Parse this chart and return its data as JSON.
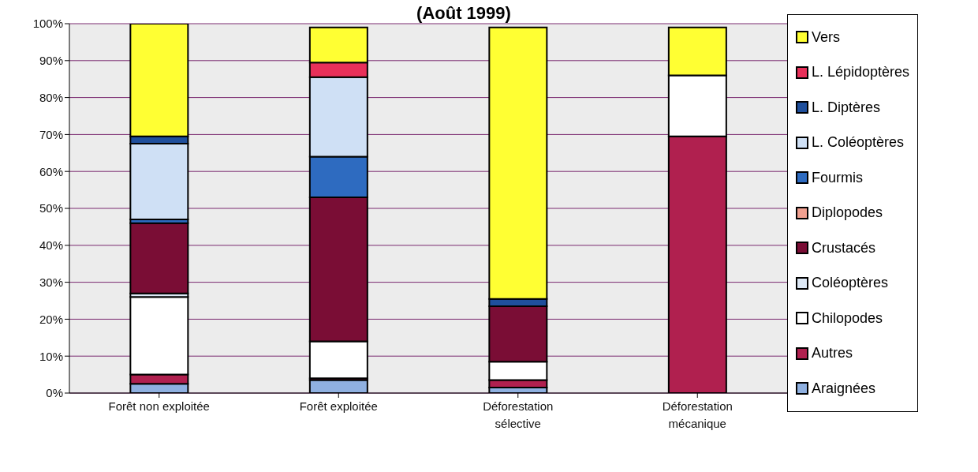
{
  "chart_data": {
    "type": "bar",
    "title": "(Août 1999)",
    "stacked": true,
    "categories": [
      "Forêt non exploitée",
      "Forêt exploitée",
      "Déforestation sélective",
      "Déforestation mécanique"
    ],
    "series": [
      {
        "name": "Araignées",
        "color": "#8fb0e0",
        "values": [
          2.5,
          3.5,
          1.5,
          0
        ]
      },
      {
        "name": "Autres",
        "color": "#b0204f",
        "values": [
          2.5,
          0.5,
          2,
          69.5
        ]
      },
      {
        "name": "Chilopodes",
        "color": "#ffffff",
        "values": [
          21,
          10,
          5,
          16.5
        ]
      },
      {
        "name": "Coléoptères",
        "color": "#dde8f5",
        "values": [
          1,
          0,
          0,
          0
        ]
      },
      {
        "name": "Crustacés",
        "color": "#7a0d35",
        "values": [
          19,
          39,
          15,
          0
        ]
      },
      {
        "name": "Diplopodes",
        "color": "#f0a090",
        "values": [
          0,
          0,
          0,
          0
        ]
      },
      {
        "name": "Fourmis",
        "color": "#2e6bc0",
        "values": [
          1,
          11,
          0,
          0
        ]
      },
      {
        "name": "L. Coléoptères",
        "color": "#cfe0f5",
        "values": [
          20.5,
          21.5,
          0,
          0
        ]
      },
      {
        "name": "L. Diptères",
        "color": "#1f4f9c",
        "values": [
          2,
          0,
          2,
          0
        ]
      },
      {
        "name": "L. Lépidoptères",
        "color": "#e8305a",
        "values": [
          0,
          4,
          0,
          0
        ]
      },
      {
        "name": "Vers",
        "color": "#ffff33",
        "values": [
          30.5,
          9.5,
          73.5,
          13
        ]
      }
    ],
    "ylim": [
      0,
      100
    ],
    "yticks": [
      {
        "value": 0,
        "label": "0%"
      },
      {
        "value": 10,
        "label": "10%"
      },
      {
        "value": 20,
        "label": "20%"
      },
      {
        "value": 30,
        "label": "30%"
      },
      {
        "value": 40,
        "label": "40%"
      },
      {
        "value": 50,
        "label": "50%"
      },
      {
        "value": 60,
        "label": "60%"
      },
      {
        "value": 70,
        "label": "70%"
      },
      {
        "value": 80,
        "label": "80%"
      },
      {
        "value": 90,
        "label": "90%"
      },
      {
        "value": 100,
        "label": "100%"
      }
    ],
    "grid": "y",
    "legend": "right"
  }
}
